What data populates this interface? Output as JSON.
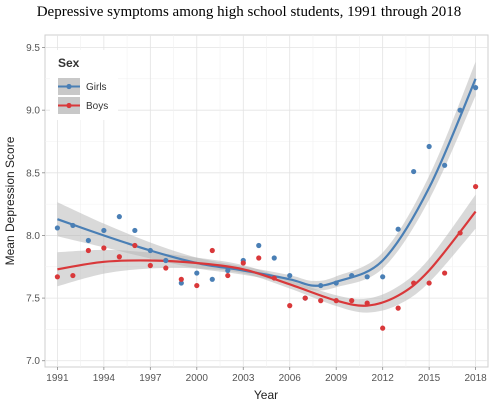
{
  "chart_data": {
    "type": "scatter",
    "title": "Depressive symptoms among high school students, 1991 through 2018",
    "xlabel": "Year",
    "ylabel": "Mean Depression Score",
    "xlim": [
      1990.2,
      2018.8
    ],
    "ylim": [
      6.95,
      9.6
    ],
    "xticks": [
      1991,
      1994,
      1997,
      2000,
      2003,
      2006,
      2009,
      2012,
      2015,
      2018
    ],
    "yticks": [
      7.0,
      7.5,
      8.0,
      8.5,
      9.0,
      9.5
    ],
    "ytick_labels": [
      "7.0",
      "7.5",
      "8.0",
      "8.5",
      "9.0",
      "9.5"
    ],
    "grid": true,
    "legend": {
      "title": "Sex",
      "placement": "top-left"
    },
    "series": [
      {
        "name": "Girls",
        "color": "#4a7fb5",
        "points": [
          [
            1991,
            8.06
          ],
          [
            1992,
            8.08
          ],
          [
            1993,
            7.96
          ],
          [
            1994,
            8.04
          ],
          [
            1995,
            8.15
          ],
          [
            1996,
            8.04
          ],
          [
            1997,
            7.88
          ],
          [
            1998,
            7.8
          ],
          [
            1999,
            7.62
          ],
          [
            2000,
            7.7
          ],
          [
            2001,
            7.65
          ],
          [
            2002,
            7.72
          ],
          [
            2003,
            7.8
          ],
          [
            2004,
            7.92
          ],
          [
            2005,
            7.82
          ],
          [
            2006,
            7.68
          ],
          [
            2007,
            7.5
          ],
          [
            2008,
            7.6
          ],
          [
            2009,
            7.62
          ],
          [
            2010,
            7.68
          ],
          [
            2011,
            7.67
          ],
          [
            2012,
            7.67
          ],
          [
            2013,
            8.05
          ],
          [
            2014,
            8.51
          ],
          [
            2015,
            8.71
          ],
          [
            2016,
            8.56
          ],
          [
            2017,
            9.0
          ],
          [
            2018,
            9.18
          ]
        ],
        "trend": [
          [
            1991,
            8.13
          ],
          [
            1994,
            8.0
          ],
          [
            1997,
            7.88
          ],
          [
            2000,
            7.78
          ],
          [
            2003,
            7.72
          ],
          [
            2006,
            7.65
          ],
          [
            2007.5,
            7.6
          ],
          [
            2009,
            7.63
          ],
          [
            2012,
            7.8
          ],
          [
            2015,
            8.38
          ],
          [
            2018,
            9.25
          ]
        ]
      },
      {
        "name": "Boys",
        "color": "#d9383a",
        "points": [
          [
            1991,
            7.67
          ],
          [
            1992,
            7.68
          ],
          [
            1993,
            7.88
          ],
          [
            1994,
            7.9
          ],
          [
            1995,
            7.83
          ],
          [
            1996,
            7.92
          ],
          [
            1997,
            7.76
          ],
          [
            1998,
            7.74
          ],
          [
            1999,
            7.65
          ],
          [
            2000,
            7.6
          ],
          [
            2001,
            7.88
          ],
          [
            2002,
            7.68
          ],
          [
            2003,
            7.78
          ],
          [
            2004,
            7.82
          ],
          [
            2005,
            7.66
          ],
          [
            2006,
            7.44
          ],
          [
            2007,
            7.5
          ],
          [
            2008,
            7.48
          ],
          [
            2009,
            7.48
          ],
          [
            2010,
            7.48
          ],
          [
            2011,
            7.46
          ],
          [
            2012,
            7.26
          ],
          [
            2013,
            7.42
          ],
          [
            2014,
            7.62
          ],
          [
            2015,
            7.62
          ],
          [
            2016,
            7.7
          ],
          [
            2017,
            8.02
          ],
          [
            2018,
            8.39
          ]
        ],
        "trend": [
          [
            1991,
            7.73
          ],
          [
            1994,
            7.79
          ],
          [
            1997,
            7.8
          ],
          [
            2000,
            7.78
          ],
          [
            2003,
            7.73
          ],
          [
            2006,
            7.61
          ],
          [
            2009,
            7.48
          ],
          [
            2011,
            7.44
          ],
          [
            2013,
            7.52
          ],
          [
            2015,
            7.72
          ],
          [
            2018,
            8.19
          ]
        ]
      }
    ]
  }
}
